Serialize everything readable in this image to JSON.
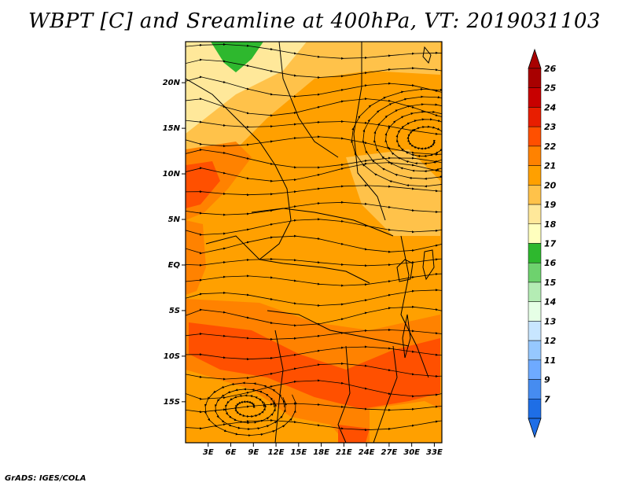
{
  "title": "WBPT [C] and Sreamline at 400hPa, VT: 2019031103",
  "footer": "GrADS: IGES/COLA",
  "map": {
    "lat_ticks": [
      "20N",
      "15N",
      "10N",
      "5N",
      "EQ",
      "5S",
      "10S",
      "15S"
    ],
    "lon_ticks": [
      "3E",
      "6E",
      "9E",
      "12E",
      "15E",
      "18E",
      "21E",
      "24E",
      "27E",
      "30E",
      "33E"
    ],
    "lat_range": [
      -19.5,
      24.5
    ],
    "lon_range": [
      0,
      34
    ],
    "lat_tick_values": [
      20,
      15,
      10,
      5,
      0,
      -5,
      -10,
      -15
    ],
    "lon_tick_values": [
      3,
      6,
      9,
      12,
      15,
      18,
      21,
      24,
      27,
      30,
      33
    ]
  },
  "colorbar": {
    "labels": [
      "26",
      "25",
      "24",
      "23",
      "22",
      "21",
      "20",
      "19",
      "18",
      "17",
      "16",
      "15",
      "14",
      "13",
      "12",
      "11",
      "9",
      "7"
    ],
    "colors": [
      "#a80000",
      "#c80000",
      "#e81e00",
      "#ff5000",
      "#ff8200",
      "#ffa000",
      "#ffc24a",
      "#ffe89a",
      "#ffffbe",
      "#2eb82e",
      "#6ed26e",
      "#b4ecb4",
      "#e6ffe6",
      "#c8e6ff",
      "#96c8ff",
      "#6eaaff",
      "#468cf0",
      "#1e6ee6"
    ]
  },
  "colors": {
    "field_base": "#ffa000",
    "warm_band": "#ff8200",
    "hot_band": "#ff5000",
    "cool": "#ffc24a",
    "cooler": "#ffe89a",
    "green": "#2eb82e"
  }
}
